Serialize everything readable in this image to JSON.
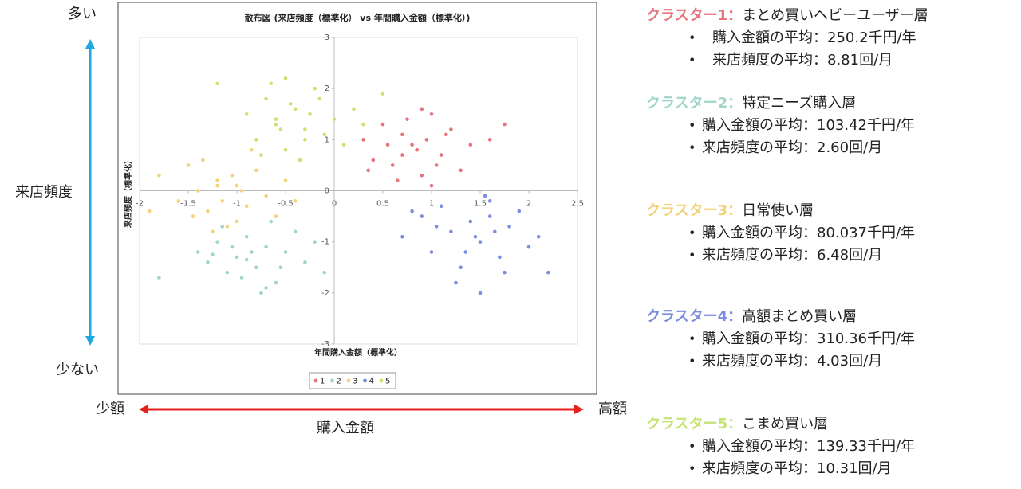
{
  "chart_data": {
    "type": "scatter",
    "title": "散布図 (来店頻度（標準化） vs 年間購入金額（標準化）)",
    "x_label": "年間購入金額（標準化）",
    "y_label": "来店頻度（標準化）",
    "xlim": [
      -2,
      2.5
    ],
    "ylim": [
      -3,
      3
    ],
    "xticks": [
      -2,
      -1.5,
      -1,
      -0.5,
      0,
      0.5,
      1,
      1.5,
      2,
      2.5
    ],
    "yticks": [
      -3,
      -2,
      -1,
      0,
      1,
      2,
      3
    ],
    "legend": "bottom",
    "series": [
      {
        "name": "1",
        "color": "#e8737e",
        "x": [
          0.3,
          0.5,
          0.6,
          0.7,
          0.8,
          0.9,
          1.0,
          1.1,
          1.2,
          1.3,
          0.4,
          0.65,
          0.75,
          0.85,
          0.95,
          1.05,
          1.15,
          0.55,
          0.9,
          1.4,
          1.6,
          1.75,
          0.35,
          1.0,
          0.7
        ],
        "values": [
          1.0,
          1.3,
          0.5,
          1.1,
          0.9,
          0.3,
          1.5,
          0.7,
          1.2,
          0.4,
          0.6,
          0.2,
          1.4,
          0.8,
          1.0,
          0.5,
          1.1,
          0.9,
          1.6,
          0.9,
          1.0,
          1.3,
          0.4,
          0.1,
          0.7
        ]
      },
      {
        "name": "2",
        "color": "#9fd6c9",
        "x": [
          -1.4,
          -1.3,
          -1.2,
          -1.1,
          -1.0,
          -0.9,
          -0.8,
          -0.7,
          -0.6,
          -0.5,
          -0.4,
          -0.3,
          -0.2,
          -1.15,
          -0.95,
          -0.75,
          -0.55,
          -0.85,
          -1.05,
          -0.65,
          -1.8,
          -0.1,
          -0.9,
          -0.7,
          -1.25
        ],
        "values": [
          -1.2,
          -1.4,
          -1.0,
          -1.6,
          -1.3,
          -0.9,
          -1.5,
          -1.1,
          -1.8,
          -1.2,
          -0.8,
          -1.4,
          -1.0,
          -0.7,
          -1.7,
          -2.0,
          -1.5,
          -1.2,
          -1.1,
          -0.6,
          -1.7,
          -1.6,
          -1.35,
          -1.9,
          -1.25
        ]
      },
      {
        "name": "3",
        "color": "#f2d37a",
        "x": [
          -1.8,
          -1.6,
          -1.5,
          -1.4,
          -1.3,
          -1.2,
          -1.1,
          -1.0,
          -0.9,
          -0.8,
          -0.7,
          -0.6,
          -0.5,
          -1.35,
          -1.15,
          -0.95,
          -0.75,
          -1.25,
          -1.05,
          -1.45,
          -1.9,
          -0.4,
          -1.0,
          -1.2,
          -0.85
        ],
        "values": [
          0.3,
          -0.2,
          0.5,
          0.0,
          -0.4,
          0.2,
          -0.7,
          0.1,
          -0.3,
          0.4,
          -0.1,
          -0.5,
          0.2,
          0.6,
          -0.2,
          0.0,
          0.7,
          -0.8,
          0.3,
          -0.5,
          -0.4,
          -0.2,
          -0.6,
          0.1,
          0.8
        ]
      },
      {
        "name": "4",
        "color": "#7b8de0",
        "x": [
          0.7,
          0.9,
          1.0,
          1.1,
          1.2,
          1.3,
          1.4,
          1.5,
          1.6,
          1.7,
          1.8,
          1.9,
          2.0,
          2.2,
          1.25,
          1.45,
          1.55,
          1.35,
          1.65,
          0.8,
          1.05,
          1.75,
          1.5,
          2.1,
          1.6
        ],
        "values": [
          -0.9,
          -0.5,
          -1.2,
          -0.3,
          -0.8,
          -1.5,
          -0.6,
          -1.0,
          -0.2,
          -1.3,
          -0.7,
          -0.4,
          -1.1,
          -1.6,
          -1.8,
          -0.9,
          -0.1,
          -1.2,
          -0.8,
          -0.4,
          -0.7,
          -1.6,
          -2.0,
          -0.9,
          -0.5
        ]
      },
      {
        "name": "5",
        "color": "#c5e472",
        "x": [
          -0.9,
          -0.8,
          -0.7,
          -0.6,
          -0.5,
          -0.4,
          -0.3,
          -0.2,
          -0.1,
          0.0,
          0.1,
          -0.65,
          -0.45,
          -0.35,
          -0.55,
          -0.75,
          -0.25,
          -1.2,
          0.3,
          0.5,
          -0.5,
          -0.3,
          -0.6,
          -0.15,
          0.2
        ],
        "values": [
          1.5,
          1.0,
          1.8,
          1.3,
          0.8,
          1.6,
          1.2,
          2.0,
          1.1,
          1.4,
          0.9,
          2.1,
          1.7,
          0.6,
          1.2,
          0.7,
          1.5,
          2.1,
          1.3,
          1.9,
          2.2,
          1.0,
          1.4,
          1.8,
          1.6
        ]
      }
    ]
  },
  "slide": {
    "y_high": "多い",
    "y_title": "来店頻度",
    "y_low": "少ない",
    "x_low": "少額",
    "x_high": "高額",
    "x_title": "購入金額"
  },
  "clusters": [
    {
      "label": "クラスター1：",
      "name": "まとめ買いヘビーユーザー層",
      "items": [
        "購入金額の平均：250.2千円/年",
        "来店頻度の平均：8.81回/月"
      ]
    },
    {
      "label": "クラスター2：",
      "name": "特定ニーズ購入層",
      "items": [
        "購入金額の平均：103.42千円/年",
        "来店頻度の平均：2.60回/月"
      ]
    },
    {
      "label": "クラスター3：",
      "name": "日常使い層",
      "items": [
        "購入金額の平均：80.037千円/年",
        "来店頻度の平均：6.48回/月"
      ]
    },
    {
      "label": "クラスター4：",
      "name": "高額まとめ買い層",
      "items": [
        "購入金額の平均：310.36千円/年",
        "来店頻度の平均：4.03回/月"
      ]
    },
    {
      "label": "クラスター5：",
      "name": "こまめ買い層",
      "items": [
        "購入金額の平均：139.33千円/年",
        "来店頻度の平均：10.31回/月"
      ]
    }
  ]
}
